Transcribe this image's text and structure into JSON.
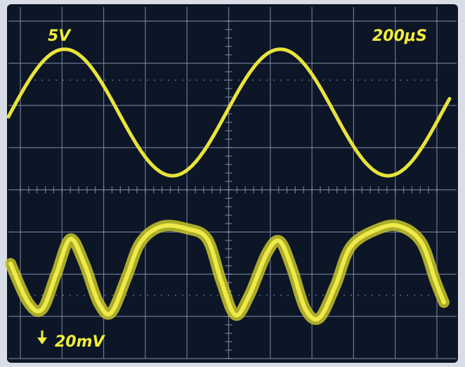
{
  "screen": {
    "channel_1_scale": "5V",
    "time_scale": "200μS",
    "channel_2_scale": "20mV"
  }
}
